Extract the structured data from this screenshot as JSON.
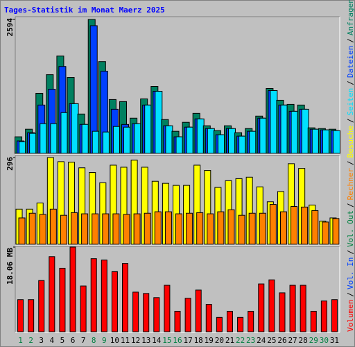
{
  "title": "Tages-Statistik im Monat Maerz 2025",
  "legend_separator": "/",
  "chart_data": [
    {
      "type": "bar",
      "ylim": [
        0,
        2594
      ],
      "yticks": [
        2594
      ],
      "series": [
        {
          "name": "Anfragen",
          "color": "#008060",
          "values": [
            321,
            468,
            1163,
            1524,
            1885,
            1471,
            762,
            2594,
            1778,
            1043,
            1003,
            682,
            1056,
            1297,
            655,
            428,
            602,
            775,
            535,
            441,
            535,
            401,
            481,
            722,
            1257,
            1029,
            949,
            936,
            495,
            481,
            468
          ]
        },
        {
          "name": "Dateien",
          "color": "#0040ff",
          "values": [
            241,
            401,
            936,
            1243,
            1684,
            962,
            561,
            2473,
            1591,
            855,
            560,
            575,
            936,
            1203,
            535,
            321,
            508,
            668,
            481,
            361,
            481,
            334,
            428,
            682,
            1216,
            936,
            815,
            855,
            468,
            455,
            441
          ]
        },
        {
          "name": "Seiten",
          "color": "#00e0ff",
          "values": [
            227,
            388,
            575,
            575,
            789,
            962,
            561,
            428,
            414,
            521,
            508,
            575,
            936,
            1203,
            535,
            321,
            508,
            668,
            481,
            361,
            481,
            334,
            428,
            682,
            1216,
            936,
            815,
            855,
            468,
            455,
            441
          ]
        }
      ]
    },
    {
      "type": "bar",
      "ylim": [
        0,
        296
      ],
      "yticks": [
        296
      ],
      "series": [
        {
          "name": "Besuche",
          "color": "#ffff00",
          "values": [
            120,
            120,
            141,
            296,
            282,
            280,
            261,
            245,
            210,
            270,
            263,
            287,
            263,
            215,
            208,
            201,
            201,
            270,
            252,
            194,
            217,
            224,
            229,
            196,
            145,
            180,
            275,
            259,
            134,
            79,
            90
          ]
        },
        {
          "name": "Rechner",
          "color": "#ff8000",
          "values": [
            90,
            106,
            102,
            120,
            99,
            108,
            104,
            104,
            104,
            104,
            102,
            104,
            106,
            111,
            111,
            104,
            106,
            108,
            104,
            111,
            118,
            99,
            106,
            106,
            136,
            111,
            129,
            127,
            115,
            76,
            88
          ]
        }
      ]
    },
    {
      "type": "bar",
      "ylim": [
        0,
        18.06
      ],
      "yticks": [
        {
          "value": 18.06,
          "label": "18.06 MB"
        }
      ],
      "categories": [
        "1",
        "2",
        "3",
        "4",
        "5",
        "6",
        "7",
        "8",
        "9",
        "10",
        "11",
        "12",
        "13",
        "14",
        "15",
        "16",
        "17",
        "18",
        "19",
        "20",
        "21",
        "22",
        "23",
        "24",
        "25",
        "26",
        "27",
        "28",
        "29",
        "30",
        "31"
      ],
      "category_colors": [
        "#008040",
        "#008040",
        "#000000",
        "#000000",
        "#000000",
        "#000000",
        "#000000",
        "#008040",
        "#008040",
        "#000000",
        "#000000",
        "#000000",
        "#000000",
        "#000000",
        "#008040",
        "#008040",
        "#000000",
        "#000000",
        "#000000",
        "#000000",
        "#000000",
        "#008040",
        "#008040",
        "#000000",
        "#000000",
        "#000000",
        "#000000",
        "#000000",
        "#008040",
        "#008040",
        "#000000"
      ],
      "series": [
        {
          "name": "Vol. Out",
          "color": "#008040",
          "values": [
            null,
            null,
            null,
            null,
            null,
            null,
            null,
            null,
            null,
            null,
            null,
            null,
            null,
            null,
            null,
            null,
            null,
            null,
            null,
            null,
            null,
            null,
            null,
            null,
            null,
            null,
            null,
            null,
            null,
            null,
            null
          ]
        },
        {
          "name": "Vol. In",
          "color": "#0040ff",
          "values": [
            null,
            null,
            null,
            null,
            null,
            null,
            null,
            null,
            null,
            null,
            null,
            null,
            null,
            null,
            null,
            null,
            null,
            null,
            null,
            null,
            null,
            null,
            null,
            null,
            null,
            null,
            null,
            null,
            null,
            null,
            null
          ]
        },
        {
          "name": "Volumen",
          "color": "#ff0000",
          "values": [
            6.85,
            6.85,
            10.92,
            16.02,
            13.55,
            18.06,
            9.76,
            15.59,
            15.29,
            12.82,
            14.56,
            8.45,
            8.16,
            7.28,
            9.91,
            4.37,
            7.14,
            8.89,
            5.83,
            3.06,
            4.37,
            3.06,
            4.37,
            10.2,
            11.07,
            8.3,
            9.91,
            9.91,
            4.37,
            6.56,
            6.85
          ]
        }
      ]
    }
  ]
}
